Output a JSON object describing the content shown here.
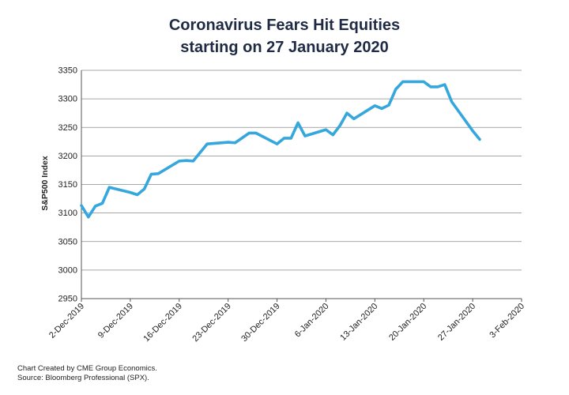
{
  "chart_data": {
    "type": "line",
    "title_line1": "Coronavirus Fears Hit Equities",
    "title_line2": "starting on 27 January 2020",
    "ylabel": "S&P500 Index",
    "ylim": [
      2950,
      3350
    ],
    "yticks": [
      2950,
      3000,
      3050,
      3100,
      3150,
      3200,
      3250,
      3300,
      3350
    ],
    "xlim": [
      "2019-12-02",
      "2020-02-03"
    ],
    "xticks": [
      {
        "date": "2019-12-02",
        "label": "2-Dec-2019"
      },
      {
        "date": "2019-12-09",
        "label": "9-Dec-2019"
      },
      {
        "date": "2019-12-16",
        "label": "16-Dec-2019"
      },
      {
        "date": "2019-12-23",
        "label": "23-Dec-2019"
      },
      {
        "date": "2019-12-30",
        "label": "30-Dec-2019"
      },
      {
        "date": "2020-01-06",
        "label": "6-Jan-2020"
      },
      {
        "date": "2020-01-13",
        "label": "13-Jan-2020"
      },
      {
        "date": "2020-01-20",
        "label": "20-Jan-2020"
      },
      {
        "date": "2020-01-27",
        "label": "27-Jan-2020"
      },
      {
        "date": "2020-02-03",
        "label": "3-Feb-2020"
      }
    ],
    "grid": true,
    "line_color": "#35a7dc",
    "series": [
      {
        "name": "",
        "points": [
          {
            "x": "2019-12-02",
            "y": 3113
          },
          {
            "x": "2019-12-03",
            "y": 3093
          },
          {
            "x": "2019-12-04",
            "y": 3112
          },
          {
            "x": "2019-12-05",
            "y": 3117
          },
          {
            "x": "2019-12-06",
            "y": 3145
          },
          {
            "x": "2019-12-09",
            "y": 3136
          },
          {
            "x": "2019-12-10",
            "y": 3132
          },
          {
            "x": "2019-12-11",
            "y": 3142
          },
          {
            "x": "2019-12-12",
            "y": 3168
          },
          {
            "x": "2019-12-13",
            "y": 3169
          },
          {
            "x": "2019-12-16",
            "y": 3191
          },
          {
            "x": "2019-12-17",
            "y": 3192
          },
          {
            "x": "2019-12-18",
            "y": 3191
          },
          {
            "x": "2019-12-19",
            "y": 3206
          },
          {
            "x": "2019-12-20",
            "y": 3221
          },
          {
            "x": "2019-12-23",
            "y": 3224
          },
          {
            "x": "2019-12-24",
            "y": 3223
          },
          {
            "x": "2019-12-26",
            "y": 3240
          },
          {
            "x": "2019-12-27",
            "y": 3240
          },
          {
            "x": "2019-12-30",
            "y": 3221
          },
          {
            "x": "2019-12-31",
            "y": 3231
          },
          {
            "x": "2020-01-01",
            "y": 3231
          },
          {
            "x": "2020-01-02",
            "y": 3258
          },
          {
            "x": "2020-01-03",
            "y": 3235
          },
          {
            "x": "2020-01-06",
            "y": 3246
          },
          {
            "x": "2020-01-07",
            "y": 3237
          },
          {
            "x": "2020-01-08",
            "y": 3253
          },
          {
            "x": "2020-01-09",
            "y": 3275
          },
          {
            "x": "2020-01-10",
            "y": 3265
          },
          {
            "x": "2020-01-13",
            "y": 3288
          },
          {
            "x": "2020-01-14",
            "y": 3283
          },
          {
            "x": "2020-01-15",
            "y": 3289
          },
          {
            "x": "2020-01-16",
            "y": 3317
          },
          {
            "x": "2020-01-17",
            "y": 3330
          },
          {
            "x": "2020-01-20",
            "y": 3330
          },
          {
            "x": "2020-01-21",
            "y": 3321
          },
          {
            "x": "2020-01-22",
            "y": 3321
          },
          {
            "x": "2020-01-23",
            "y": 3325
          },
          {
            "x": "2020-01-24",
            "y": 3295
          },
          {
            "x": "2020-01-27",
            "y": 3244
          },
          {
            "x": "2020-01-28",
            "y": 3229
          }
        ]
      }
    ]
  },
  "footer": {
    "line1": "Chart Created by CME Group Economics.",
    "line2": "Source:  Bloomberg Professional (SPX)."
  }
}
